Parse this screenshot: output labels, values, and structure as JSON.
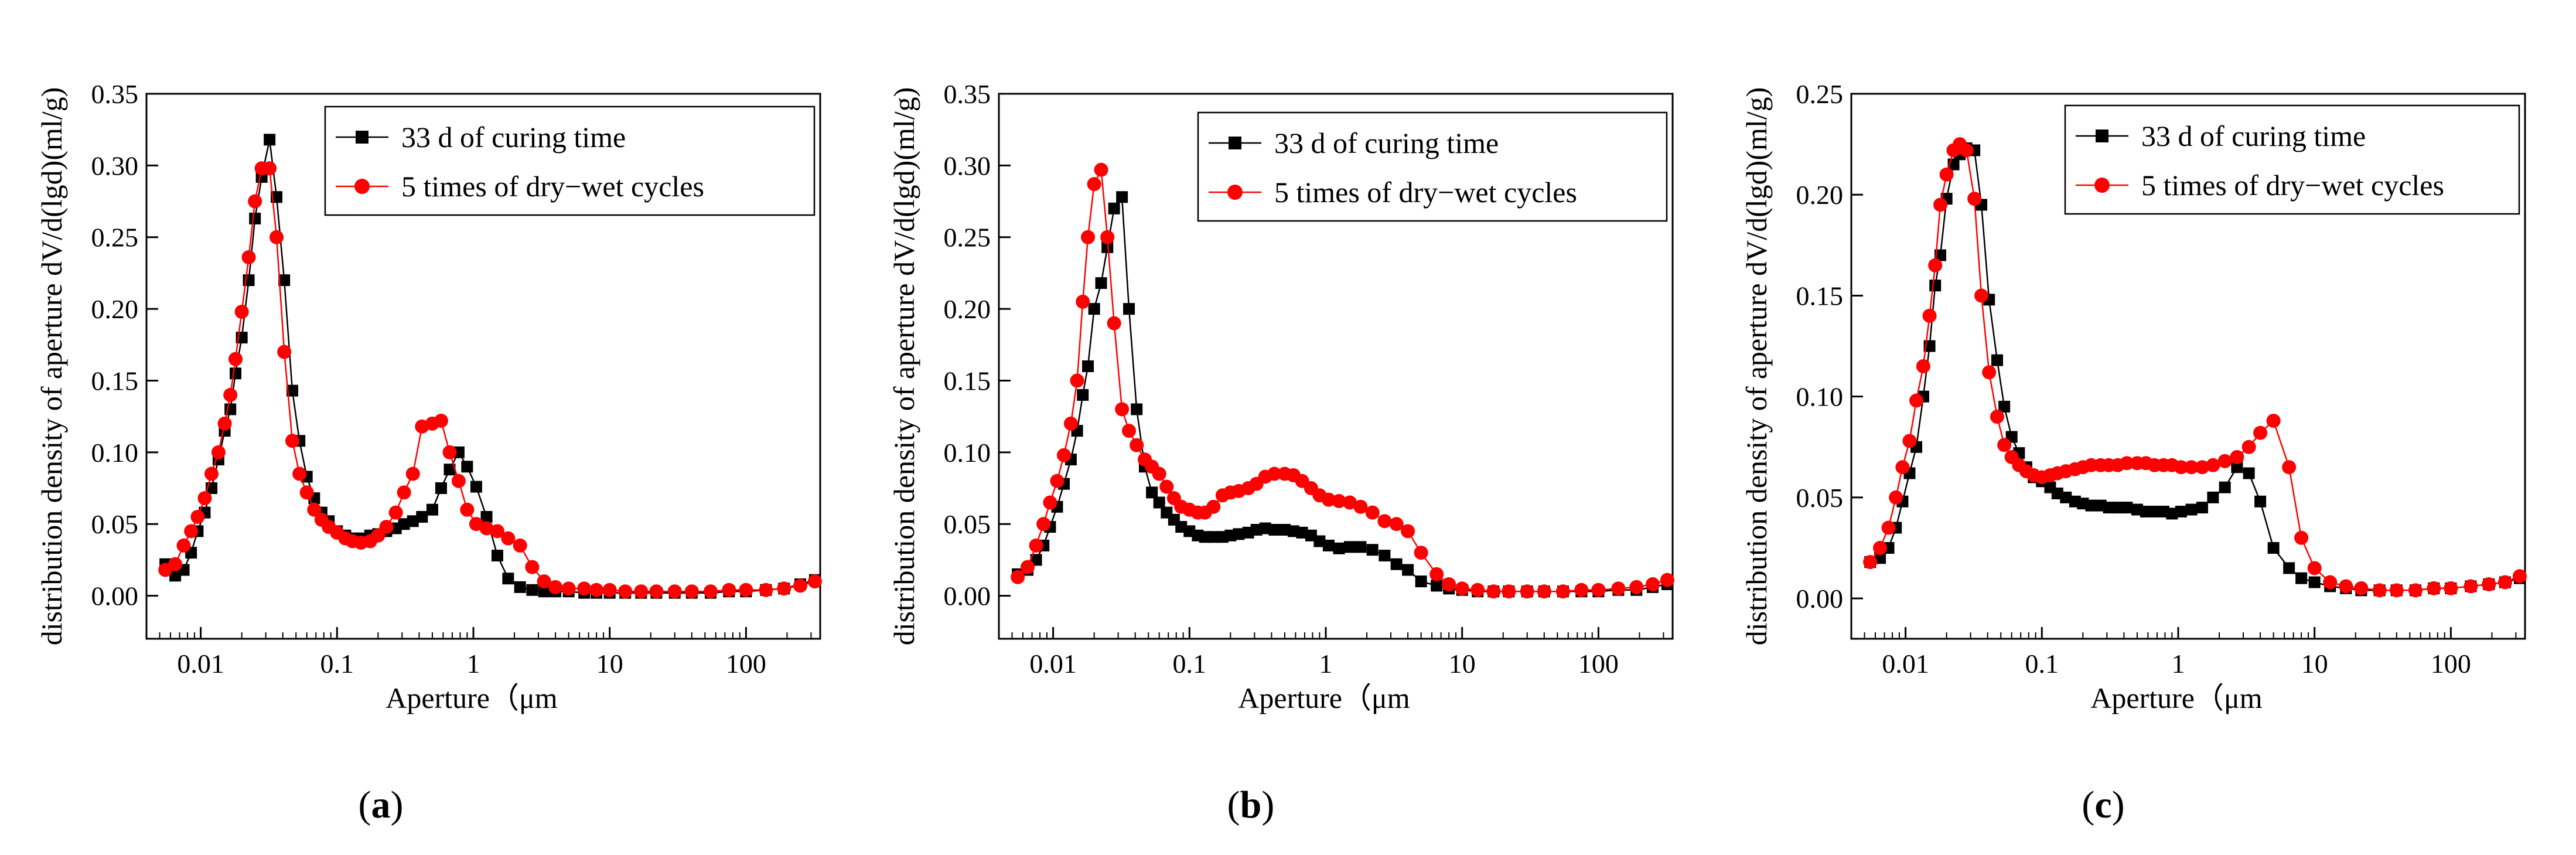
{
  "chart_data": [
    {
      "type": "line",
      "panel_label": "a",
      "xlabel": "Aperture（μm",
      "ylabel": "distribution density of aperture dV/d(lgd)(ml/g)",
      "xscale": "log",
      "xlim": [
        0.004,
        350
      ],
      "ylim": [
        -0.03,
        0.35
      ],
      "xticks": [
        0.01,
        0.1,
        1,
        10,
        100
      ],
      "xtick_labels": [
        "0.01",
        "0.1",
        "1",
        "10",
        "100"
      ],
      "yticks": [
        0,
        0.05,
        0.1,
        0.15,
        0.2,
        0.25,
        0.3,
        0.35
      ],
      "ytick_labels": [
        "0.00",
        "0.05",
        "0.10",
        "0.15",
        "0.20",
        "0.25",
        "0.30",
        "0.35"
      ],
      "legend": "top-right",
      "series": [
        {
          "name": "33 d of curing time",
          "color": "#000000",
          "marker": "square",
          "x": [
            0.0055,
            0.0065,
            0.0075,
            0.0085,
            0.0095,
            0.0107,
            0.012,
            0.0135,
            0.015,
            0.0165,
            0.018,
            0.02,
            0.0225,
            0.025,
            0.028,
            0.032,
            0.036,
            0.041,
            0.047,
            0.053,
            0.06,
            0.068,
            0.077,
            0.087,
            0.1,
            0.115,
            0.13,
            0.15,
            0.175,
            0.2,
            0.23,
            0.27,
            0.31,
            0.36,
            0.42,
            0.5,
            0.58,
            0.67,
            0.78,
            0.9,
            1.05,
            1.25,
            1.5,
            1.8,
            2.2,
            2.7,
            3.3,
            4,
            5,
            6.5,
            8,
            10,
            13,
            17,
            22,
            30,
            40,
            55,
            75,
            100,
            140,
            190,
            250,
            320
          ],
          "y": [
            0.022,
            0.014,
            0.018,
            0.03,
            0.045,
            0.058,
            0.075,
            0.095,
            0.115,
            0.13,
            0.155,
            0.18,
            0.22,
            0.263,
            0.292,
            0.318,
            0.278,
            0.22,
            0.143,
            0.108,
            0.083,
            0.068,
            0.058,
            0.052,
            0.045,
            0.042,
            0.04,
            0.04,
            0.042,
            0.043,
            0.045,
            0.047,
            0.05,
            0.052,
            0.055,
            0.06,
            0.075,
            0.088,
            0.1,
            0.09,
            0.076,
            0.055,
            0.028,
            0.012,
            0.006,
            0.004,
            0.003,
            0.003,
            0.003,
            0.002,
            0.002,
            0.002,
            0.002,
            0.002,
            0.002,
            0.002,
            0.002,
            0.002,
            0.003,
            0.003,
            0.004,
            0.005,
            0.008,
            0.011
          ]
        },
        {
          "name": "5 times of dry−wet cycles",
          "color": "#ff0000",
          "marker": "circle",
          "x": [
            0.0055,
            0.0065,
            0.0075,
            0.0085,
            0.0095,
            0.0107,
            0.012,
            0.0135,
            0.015,
            0.0165,
            0.018,
            0.02,
            0.0225,
            0.025,
            0.028,
            0.032,
            0.036,
            0.041,
            0.047,
            0.053,
            0.06,
            0.068,
            0.077,
            0.087,
            0.1,
            0.115,
            0.13,
            0.15,
            0.175,
            0.2,
            0.23,
            0.27,
            0.31,
            0.36,
            0.42,
            0.5,
            0.58,
            0.67,
            0.78,
            0.9,
            1.05,
            1.25,
            1.5,
            1.8,
            2.2,
            2.7,
            3.3,
            4,
            5,
            6.5,
            8,
            10,
            13,
            17,
            22,
            30,
            40,
            55,
            75,
            100,
            140,
            190,
            250,
            320
          ],
          "y": [
            0.018,
            0.022,
            0.035,
            0.045,
            0.055,
            0.068,
            0.085,
            0.1,
            0.12,
            0.14,
            0.165,
            0.198,
            0.236,
            0.275,
            0.298,
            0.298,
            0.25,
            0.17,
            0.108,
            0.085,
            0.072,
            0.06,
            0.053,
            0.048,
            0.044,
            0.04,
            0.038,
            0.037,
            0.038,
            0.042,
            0.048,
            0.058,
            0.072,
            0.085,
            0.118,
            0.12,
            0.122,
            0.1,
            0.08,
            0.06,
            0.05,
            0.047,
            0.045,
            0.04,
            0.035,
            0.02,
            0.01,
            0.006,
            0.005,
            0.005,
            0.004,
            0.004,
            0.003,
            0.003,
            0.003,
            0.003,
            0.003,
            0.003,
            0.004,
            0.004,
            0.004,
            0.005,
            0.007,
            0.01
          ]
        }
      ]
    },
    {
      "type": "line",
      "panel_label": "b",
      "xlabel": "Aperture（μm",
      "ylabel": "distribution density of aperture dV/d(lgd)(ml/g)",
      "xscale": "log",
      "xlim": [
        0.004,
        350
      ],
      "ylim": [
        -0.03,
        0.35
      ],
      "xticks": [
        0.01,
        0.1,
        1,
        10,
        100
      ],
      "xtick_labels": [
        "0.01",
        "0.1",
        "1",
        "10",
        "100"
      ],
      "yticks": [
        0,
        0.05,
        0.1,
        0.15,
        0.2,
        0.25,
        0.3,
        0.35
      ],
      "ytick_labels": [
        "0.00",
        "0.05",
        "0.10",
        "0.15",
        "0.20",
        "0.25",
        "0.30",
        "0.35"
      ],
      "legend": "top-right",
      "series": [
        {
          "name": "33 d of curing time",
          "color": "#000000",
          "marker": "square",
          "x": [
            0.0055,
            0.0065,
            0.0075,
            0.0085,
            0.0095,
            0.0107,
            0.012,
            0.0135,
            0.015,
            0.0165,
            0.018,
            0.02,
            0.0225,
            0.025,
            0.028,
            0.032,
            0.036,
            0.041,
            0.047,
            0.053,
            0.06,
            0.068,
            0.077,
            0.087,
            0.1,
            0.115,
            0.13,
            0.15,
            0.175,
            0.2,
            0.23,
            0.27,
            0.31,
            0.36,
            0.42,
            0.5,
            0.58,
            0.67,
            0.78,
            0.9,
            1.05,
            1.25,
            1.5,
            1.8,
            2.2,
            2.7,
            3.3,
            4,
            5,
            6.5,
            8,
            10,
            13,
            17,
            22,
            30,
            40,
            55,
            75,
            100,
            140,
            190,
            250,
            320
          ],
          "y": [
            0.015,
            0.018,
            0.025,
            0.035,
            0.048,
            0.062,
            0.078,
            0.095,
            0.115,
            0.14,
            0.16,
            0.2,
            0.218,
            0.243,
            0.27,
            0.278,
            0.2,
            0.13,
            0.09,
            0.072,
            0.065,
            0.058,
            0.053,
            0.048,
            0.045,
            0.042,
            0.041,
            0.041,
            0.041,
            0.042,
            0.043,
            0.044,
            0.046,
            0.047,
            0.046,
            0.046,
            0.045,
            0.044,
            0.042,
            0.038,
            0.035,
            0.033,
            0.034,
            0.034,
            0.032,
            0.028,
            0.022,
            0.018,
            0.01,
            0.007,
            0.005,
            0.004,
            0.003,
            0.003,
            0.003,
            0.003,
            0.003,
            0.003,
            0.003,
            0.003,
            0.004,
            0.004,
            0.006,
            0.008
          ]
        },
        {
          "name": "5 times of dry−wet cycles",
          "color": "#ff0000",
          "marker": "circle",
          "x": [
            0.0055,
            0.0065,
            0.0075,
            0.0085,
            0.0095,
            0.0107,
            0.012,
            0.0135,
            0.015,
            0.0165,
            0.018,
            0.02,
            0.0225,
            0.025,
            0.028,
            0.032,
            0.036,
            0.041,
            0.047,
            0.053,
            0.06,
            0.068,
            0.077,
            0.087,
            0.1,
            0.115,
            0.13,
            0.15,
            0.175,
            0.2,
            0.23,
            0.27,
            0.31,
            0.36,
            0.42,
            0.5,
            0.58,
            0.67,
            0.78,
            0.9,
            1.05,
            1.25,
            1.5,
            1.8,
            2.2,
            2.7,
            3.3,
            4,
            5,
            6.5,
            8,
            10,
            13,
            17,
            22,
            30,
            40,
            55,
            75,
            100,
            140,
            190,
            250,
            320
          ],
          "y": [
            0.013,
            0.02,
            0.035,
            0.05,
            0.065,
            0.08,
            0.098,
            0.12,
            0.15,
            0.205,
            0.25,
            0.287,
            0.297,
            0.25,
            0.19,
            0.13,
            0.115,
            0.105,
            0.095,
            0.09,
            0.085,
            0.076,
            0.068,
            0.062,
            0.06,
            0.058,
            0.058,
            0.062,
            0.07,
            0.072,
            0.073,
            0.075,
            0.078,
            0.083,
            0.085,
            0.085,
            0.084,
            0.08,
            0.075,
            0.07,
            0.067,
            0.066,
            0.065,
            0.062,
            0.058,
            0.052,
            0.05,
            0.045,
            0.03,
            0.015,
            0.008,
            0.005,
            0.004,
            0.003,
            0.003,
            0.003,
            0.003,
            0.003,
            0.004,
            0.004,
            0.005,
            0.006,
            0.008,
            0.011
          ]
        }
      ]
    },
    {
      "type": "line",
      "panel_label": "c",
      "xlabel": "Aperture（μm",
      "ylabel": "distribution density of aperture dV/d(lgd)(ml/g)",
      "xscale": "log",
      "xlim": [
        0.004,
        350
      ],
      "ylim": [
        -0.02,
        0.25
      ],
      "xticks": [
        0.01,
        0.1,
        1,
        10,
        100
      ],
      "xtick_labels": [
        "0.01",
        "0.1",
        "1",
        "10",
        "100"
      ],
      "yticks": [
        0,
        0.05,
        0.1,
        0.15,
        0.2,
        0.25
      ],
      "ytick_labels": [
        "0.00",
        "0.05",
        "0.10",
        "0.15",
        "0.20",
        "0.25"
      ],
      "legend": "top-right",
      "series": [
        {
          "name": "33 d of curing time",
          "color": "#000000",
          "marker": "square",
          "x": [
            0.0055,
            0.0065,
            0.0075,
            0.0085,
            0.0095,
            0.0107,
            0.012,
            0.0135,
            0.015,
            0.0165,
            0.018,
            0.02,
            0.0225,
            0.025,
            0.028,
            0.032,
            0.036,
            0.041,
            0.047,
            0.053,
            0.06,
            0.068,
            0.077,
            0.087,
            0.1,
            0.115,
            0.13,
            0.15,
            0.175,
            0.2,
            0.23,
            0.27,
            0.31,
            0.36,
            0.42,
            0.5,
            0.58,
            0.67,
            0.78,
            0.9,
            1.05,
            1.25,
            1.5,
            1.8,
            2.2,
            2.7,
            3.3,
            4,
            5,
            6.5,
            8,
            10,
            13,
            17,
            22,
            30,
            40,
            55,
            75,
            100,
            140,
            190,
            250,
            320
          ],
          "y": [
            0.018,
            0.02,
            0.025,
            0.035,
            0.048,
            0.062,
            0.075,
            0.1,
            0.125,
            0.155,
            0.17,
            0.198,
            0.215,
            0.22,
            0.223,
            0.222,
            0.195,
            0.148,
            0.118,
            0.095,
            0.08,
            0.072,
            0.065,
            0.06,
            0.058,
            0.055,
            0.052,
            0.05,
            0.048,
            0.047,
            0.046,
            0.046,
            0.045,
            0.045,
            0.045,
            0.044,
            0.043,
            0.043,
            0.043,
            0.042,
            0.043,
            0.044,
            0.045,
            0.05,
            0.055,
            0.065,
            0.062,
            0.048,
            0.025,
            0.015,
            0.01,
            0.008,
            0.006,
            0.005,
            0.004,
            0.004,
            0.004,
            0.004,
            0.005,
            0.005,
            0.006,
            0.007,
            0.008,
            0.01
          ]
        },
        {
          "name": "5 times of dry−wet cycles",
          "color": "#ff0000",
          "marker": "circle",
          "x": [
            0.0055,
            0.0065,
            0.0075,
            0.0085,
            0.0095,
            0.0107,
            0.012,
            0.0135,
            0.015,
            0.0165,
            0.018,
            0.02,
            0.0225,
            0.025,
            0.028,
            0.032,
            0.036,
            0.041,
            0.047,
            0.053,
            0.06,
            0.068,
            0.077,
            0.087,
            0.1,
            0.115,
            0.13,
            0.15,
            0.175,
            0.2,
            0.23,
            0.27,
            0.31,
            0.36,
            0.42,
            0.5,
            0.58,
            0.67,
            0.78,
            0.9,
            1.05,
            1.25,
            1.5,
            1.8,
            2.2,
            2.7,
            3.3,
            4,
            5,
            6.5,
            8,
            10,
            13,
            17,
            22,
            30,
            40,
            55,
            75,
            100,
            140,
            190,
            250,
            320
          ],
          "y": [
            0.018,
            0.025,
            0.035,
            0.05,
            0.065,
            0.078,
            0.098,
            0.115,
            0.14,
            0.165,
            0.195,
            0.21,
            0.222,
            0.225,
            0.222,
            0.198,
            0.15,
            0.112,
            0.09,
            0.076,
            0.07,
            0.066,
            0.063,
            0.061,
            0.06,
            0.061,
            0.062,
            0.063,
            0.064,
            0.065,
            0.066,
            0.066,
            0.066,
            0.066,
            0.067,
            0.067,
            0.067,
            0.066,
            0.066,
            0.066,
            0.065,
            0.065,
            0.065,
            0.066,
            0.068,
            0.07,
            0.075,
            0.082,
            0.088,
            0.065,
            0.03,
            0.015,
            0.008,
            0.006,
            0.005,
            0.004,
            0.004,
            0.004,
            0.005,
            0.005,
            0.006,
            0.007,
            0.008,
            0.011
          ]
        }
      ]
    }
  ]
}
